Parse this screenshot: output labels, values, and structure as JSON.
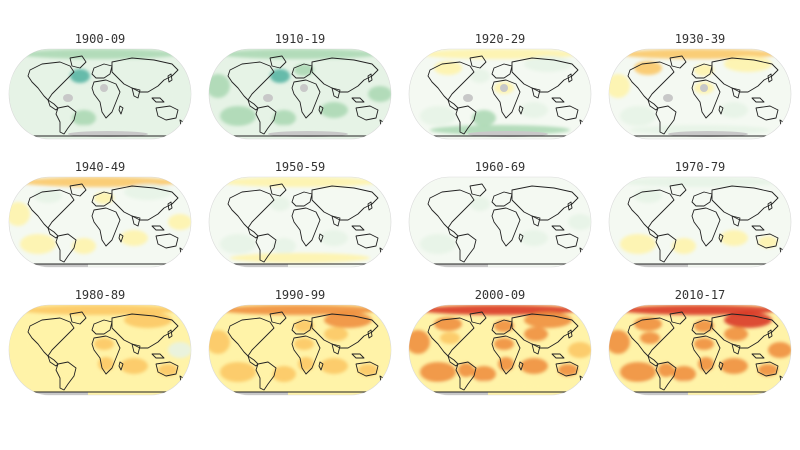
{
  "panels": [
    {
      "title": "1900-09",
      "tone": "cool",
      "intensity": 0.55
    },
    {
      "title": "1910-19",
      "tone": "cool",
      "intensity": 0.65
    },
    {
      "title": "1920-29",
      "tone": "mixed",
      "intensity": 0.4
    },
    {
      "title": "1930-39",
      "tone": "mixed",
      "intensity": 0.45
    },
    {
      "title": "1940-49",
      "tone": "mixed",
      "intensity": 0.4
    },
    {
      "title": "1950-59",
      "tone": "neutral",
      "intensity": 0.2
    },
    {
      "title": "1960-69",
      "tone": "neutral",
      "intensity": 0.15
    },
    {
      "title": "1970-79",
      "tone": "neutral",
      "intensity": 0.25
    },
    {
      "title": "1980-89",
      "tone": "warm",
      "intensity": 0.45
    },
    {
      "title": "1990-99",
      "tone": "warm",
      "intensity": 0.65
    },
    {
      "title": "2000-09",
      "tone": "warm",
      "intensity": 0.85
    },
    {
      "title": "2010-17",
      "tone": "warm",
      "intensity": 1.0
    }
  ],
  "colors": {
    "cool_light": "#e6f3e6",
    "cool_mid": "#a9d7b1",
    "cool_dark": "#4fb0a0",
    "neutral": "#f4f9f2",
    "warm_light": "#fff3a8",
    "warm_mid": "#fbc560",
    "warm_dark": "#ee8a3a",
    "hot": "#d7301f",
    "missing": "#c8c8c8"
  }
}
